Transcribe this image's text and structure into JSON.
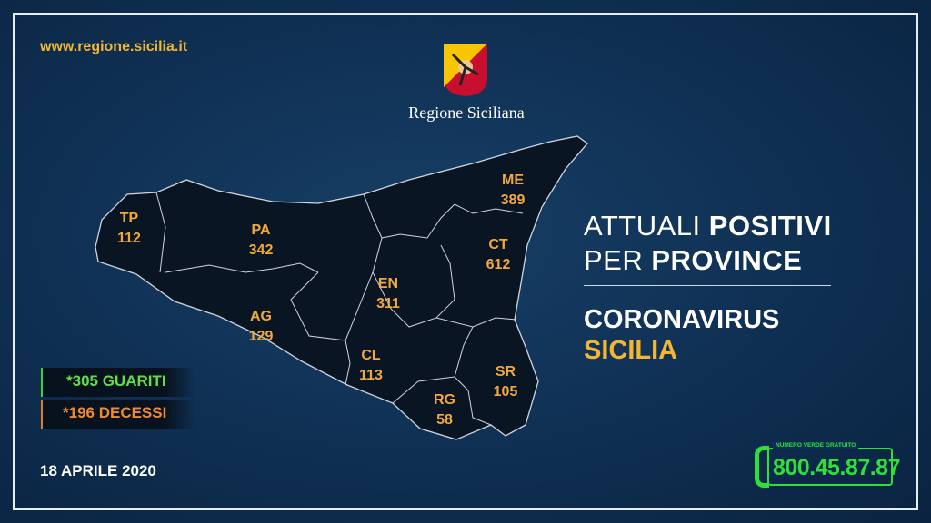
{
  "header": {
    "url": "www.regione.sicilia.it",
    "region_name": "Regione Siciliana",
    "logo": "trinacria-coat-of-arms"
  },
  "title": {
    "line1_light": "ATTUALI ",
    "line1_bold": "POSITIVI",
    "line2_light": "PER ",
    "line2_bold": "PROVINCE",
    "subtitle1": "CORONAVIRUS",
    "subtitle2": "SICILIA"
  },
  "provinces": [
    {
      "code": "TP",
      "value": "112"
    },
    {
      "code": "PA",
      "value": "342"
    },
    {
      "code": "ME",
      "value": "389"
    },
    {
      "code": "CT",
      "value": "612"
    },
    {
      "code": "EN",
      "value": "311"
    },
    {
      "code": "AG",
      "value": "129"
    },
    {
      "code": "CL",
      "value": "113"
    },
    {
      "code": "SR",
      "value": "105"
    },
    {
      "code": "RG",
      "value": "58"
    }
  ],
  "stats": {
    "recovered": "*305 GUARITI",
    "deaths": "*196 DECESSI"
  },
  "date": "18 APRILE 2020",
  "hotline": {
    "caption": "NUMERO VERDE GRATUITO",
    "number": "800.45.87.87"
  },
  "colors": {
    "background": "#0f2f52",
    "accent": "#f2b630",
    "recovered": "#5fe04a",
    "deaths": "#f08a30",
    "hotline": "#2fe03a"
  }
}
